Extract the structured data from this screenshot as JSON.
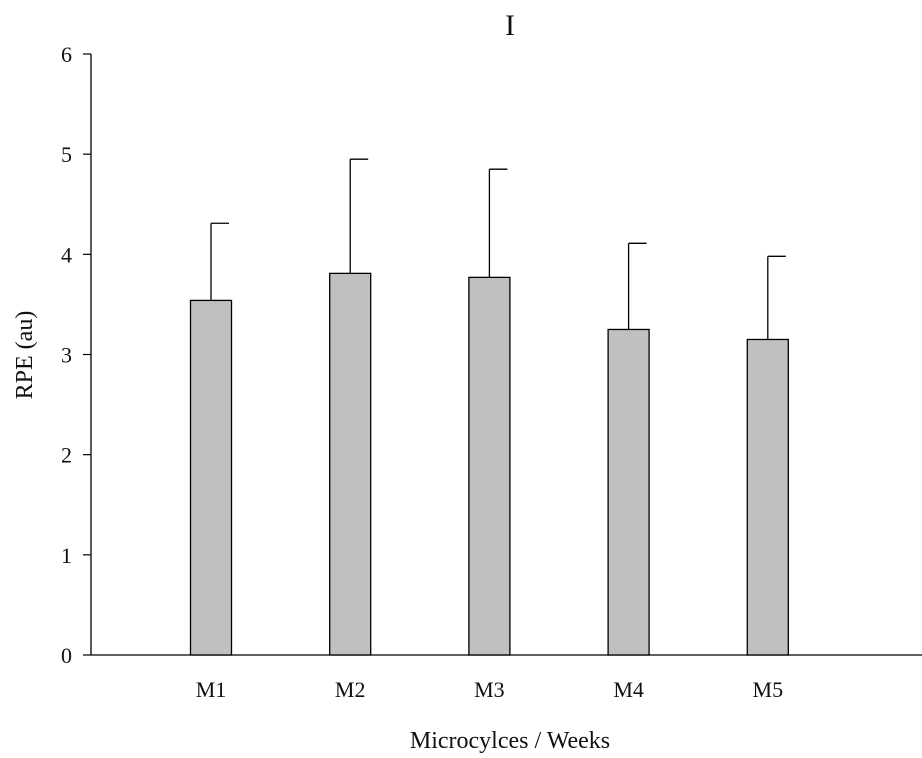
{
  "chart_data": {
    "type": "bar",
    "title": "I",
    "xlabel": "Microcylces / Weeks",
    "ylabel": "RPE (au)",
    "ylim": [
      0,
      6
    ],
    "yticks": [
      0,
      1,
      2,
      3,
      4,
      5,
      6
    ],
    "categories": [
      "M1",
      "M2",
      "M3",
      "M4",
      "M5"
    ],
    "values": [
      3.54,
      3.81,
      3.77,
      3.25,
      3.15
    ],
    "error_upper": [
      4.31,
      4.95,
      4.85,
      4.11,
      3.98
    ],
    "grid": false,
    "legend": "none",
    "bar_color": "#c0c0c0"
  }
}
